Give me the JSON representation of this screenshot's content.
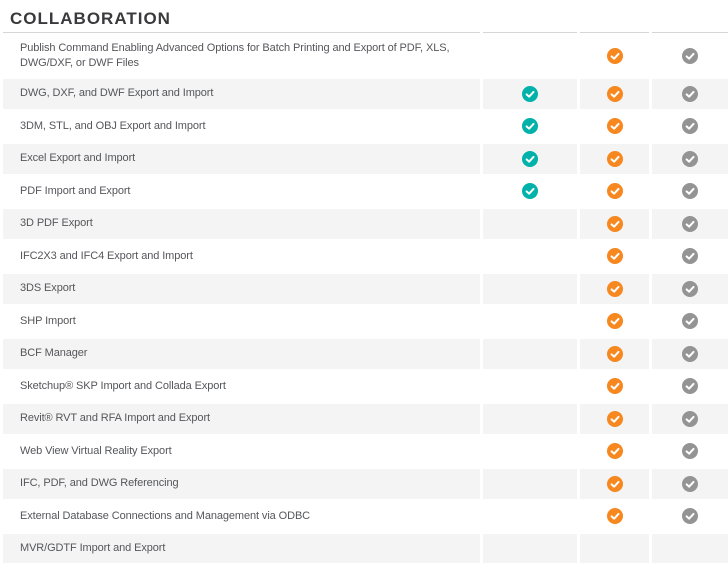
{
  "page": {
    "title": "COLLABORATION"
  },
  "colors": {
    "title_text": "#3A3A3C",
    "feature_text": "#55565A",
    "shaded_row_bg": "#F4F4F4",
    "divider": "#D6D6D6",
    "teal_check": "#00B2A9",
    "orange_check": "#F6881F",
    "gray_check": "#949494"
  },
  "table": {
    "check_columns": [
      "column-1",
      "column-2",
      "column-3"
    ],
    "check_colors": [
      "#00B2A9",
      "#F6881F",
      "#949494"
    ],
    "check_icon": "check-circle-icon",
    "rows": [
      {
        "feature": "Publish Command Enabling Advanced Options for Batch Printing and Export of PDF, XLS, DWG/DXF, or DWF Files",
        "checks": [
          false,
          true,
          true
        ]
      },
      {
        "feature": "DWG, DXF, and DWF Export and Import",
        "checks": [
          true,
          true,
          true
        ]
      },
      {
        "feature": "3DM, STL, and OBJ Export and Import",
        "checks": [
          true,
          true,
          true
        ]
      },
      {
        "feature": "Excel Export and Import",
        "checks": [
          true,
          true,
          true
        ]
      },
      {
        "feature": "PDF Import and Export",
        "checks": [
          true,
          true,
          true
        ]
      },
      {
        "feature": "3D PDF Export",
        "checks": [
          false,
          true,
          true
        ]
      },
      {
        "feature": "IFC2X3 and IFC4 Export and Import",
        "checks": [
          false,
          true,
          true
        ]
      },
      {
        "feature": "3DS Export",
        "checks": [
          false,
          true,
          true
        ]
      },
      {
        "feature": "SHP Import",
        "checks": [
          false,
          true,
          true
        ]
      },
      {
        "feature": "BCF Manager",
        "checks": [
          false,
          true,
          true
        ]
      },
      {
        "feature": "Sketchup® SKP Import and Collada Export",
        "checks": [
          false,
          true,
          true
        ]
      },
      {
        "feature": "Revit® RVT and RFA Import and Export",
        "checks": [
          false,
          true,
          true
        ]
      },
      {
        "feature": "Web View Virtual Reality Export",
        "checks": [
          false,
          true,
          true
        ]
      },
      {
        "feature": "IFC, PDF, and DWG Referencing",
        "checks": [
          false,
          true,
          true
        ]
      },
      {
        "feature": "External Database Connections and Management via ODBC",
        "checks": [
          false,
          true,
          true
        ]
      },
      {
        "feature": "MVR/GDTF Import and Export",
        "checks": [
          false,
          false,
          false
        ]
      }
    ]
  }
}
